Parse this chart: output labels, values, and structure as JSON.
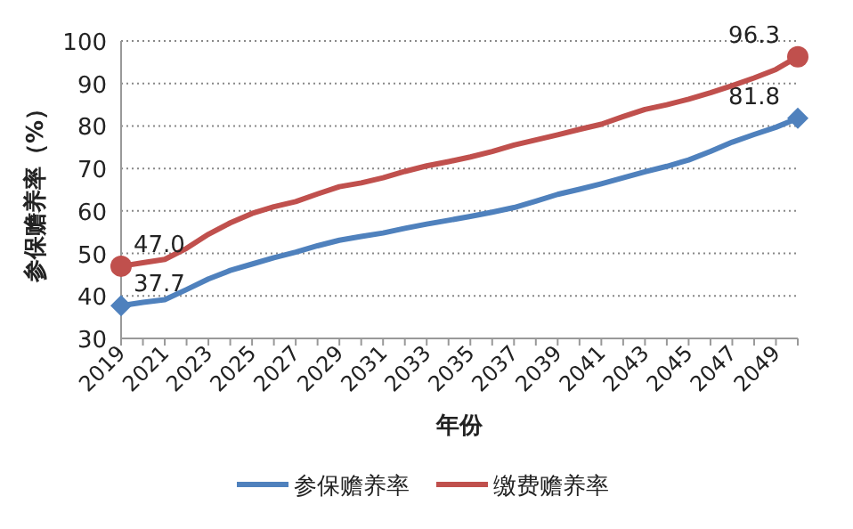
{
  "chart_data": {
    "type": "line",
    "xlabel": "年份",
    "ylabel": "参保赡养率（%）",
    "categories": [
      "2019",
      null,
      "2021",
      null,
      "2023",
      null,
      "2025",
      null,
      "2027",
      null,
      "2029",
      null,
      "2031",
      null,
      "2033",
      null,
      "2035",
      null,
      "2037",
      null,
      "2039",
      null,
      "2041",
      null,
      "2043",
      null,
      "2045",
      null,
      "2047",
      null,
      "2049",
      null
    ],
    "series": [
      {
        "name": "参保赡养率",
        "color": "#4f81bd",
        "values": [
          37.7,
          38.5,
          39.1,
          41.5,
          44,
          46,
          47.5,
          49,
          50.3,
          51.8,
          53.1,
          54,
          54.8,
          55.9,
          56.9,
          57.8,
          58.7,
          59.7,
          60.8,
          62.3,
          63.9,
          65.1,
          66.4,
          67.8,
          69.2,
          70.5,
          72,
          74,
          76.2,
          78,
          79.7,
          81.8
        ],
        "value_labels": [
          "37.7",
          null,
          null,
          null,
          null,
          null,
          null,
          null,
          null,
          null,
          null,
          null,
          null,
          null,
          null,
          null,
          null,
          null,
          null,
          null,
          null,
          null,
          null,
          null,
          null,
          null,
          null,
          null,
          null,
          null,
          null,
          "81.8"
        ]
      },
      {
        "name": "缴费赡养率",
        "color": "#c0504d",
        "values": [
          47.0,
          47.8,
          48.6,
          51.2,
          54.5,
          57.2,
          59.4,
          61,
          62.2,
          64,
          65.7,
          66.6,
          67.8,
          69.3,
          70.6,
          71.6,
          72.7,
          74,
          75.5,
          76.7,
          77.9,
          79.2,
          80.4,
          82.2,
          83.9,
          85,
          86.3,
          87.8,
          89.5,
          91.3,
          93.3,
          96.3
        ],
        "value_labels": [
          "47.0",
          null,
          null,
          null,
          null,
          null,
          null,
          null,
          null,
          null,
          null,
          null,
          null,
          null,
          null,
          null,
          null,
          null,
          null,
          null,
          null,
          null,
          null,
          null,
          null,
          null,
          null,
          null,
          null,
          null,
          null,
          "96.3"
        ]
      }
    ],
    "ylim": [
      30,
      100
    ],
    "yticks": [
      30,
      40,
      50,
      60,
      70,
      80,
      90,
      100
    ],
    "grid": "y",
    "legend": "bottom"
  }
}
